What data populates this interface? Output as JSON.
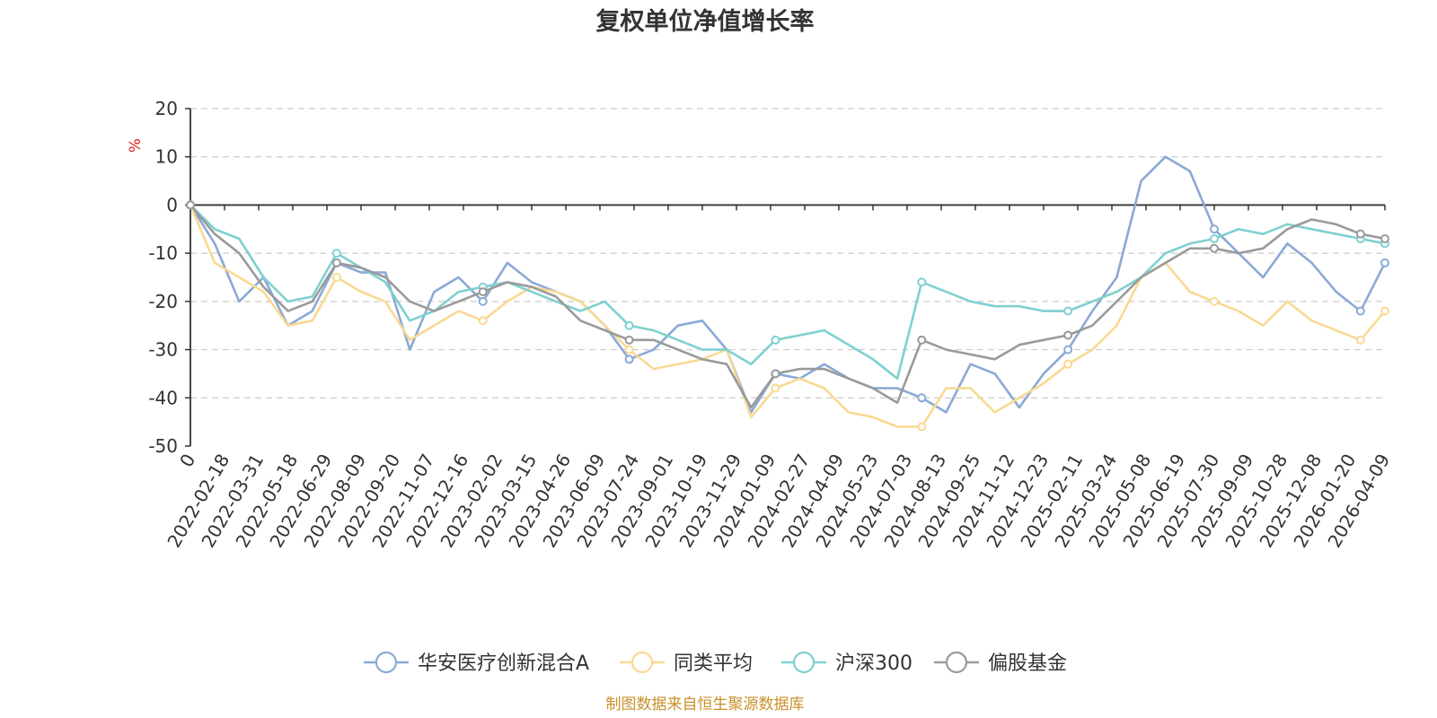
{
  "chart_data": {
    "type": "line",
    "title": "复权单位净值增长率",
    "ylabel": "%",
    "ylim": [
      -50,
      20
    ],
    "yticks": [
      20,
      10,
      0,
      -10,
      -20,
      -30,
      -40,
      -50
    ],
    "grid": true,
    "legend_position": "bottom-center",
    "x_tick_labels": [
      "0",
      "2022-02-18",
      "2022-03-31",
      "2022-05-18",
      "2022-06-29",
      "2022-08-09",
      "2022-09-20",
      "2022-11-07",
      "2022-12-16",
      "2023-02-02",
      "2023-03-15",
      "2023-04-26",
      "2023-06-09",
      "2023-07-24",
      "2023-09-01",
      "2023-10-19",
      "2023-11-29",
      "2024-01-09",
      "2024-02-27",
      "2024-04-09",
      "2024-05-23",
      "2024-07-03",
      "2024-08-13",
      "2024-09-25",
      "2024-11-12",
      "2024-12-23",
      "2025-02-11",
      "2025-03-24",
      "2025-05-08",
      "2025-06-19",
      "2025-07-30",
      "2025-09-09",
      "2025-10-28",
      "2025-12-08",
      "2026-01-20",
      "2026-04-09"
    ],
    "series": [
      {
        "name": "华安医疗创新混合A",
        "color": "#8aa9d6",
        "values": [
          0,
          -8,
          -20,
          -15,
          -25,
          -22,
          -12,
          -14,
          -14,
          -30,
          -18,
          -15,
          -20,
          -12,
          -16,
          -18,
          -20,
          -25,
          -32,
          -30,
          -25,
          -24,
          -30,
          -43,
          -35,
          -36,
          -33,
          -36,
          -38,
          -38,
          -40,
          -43,
          -33,
          -35,
          -42,
          -35,
          -30,
          -22,
          -15,
          5,
          10,
          7,
          -5,
          -10,
          -15,
          -8,
          -12,
          -18,
          -22,
          -12
        ]
      },
      {
        "name": "同类平均",
        "color": "#f9d992",
        "values": [
          0,
          -12,
          -15,
          -18,
          -25,
          -24,
          -15,
          -18,
          -20,
          -28,
          -25,
          -22,
          -24,
          -20,
          -17,
          -18,
          -20,
          -25,
          -30,
          -34,
          -33,
          -32,
          -30,
          -44,
          -38,
          -36,
          -38,
          -43,
          -44,
          -46,
          -46,
          -38,
          -38,
          -43,
          -40,
          -37,
          -33,
          -30,
          -25,
          -15,
          -12,
          -18,
          -20,
          -22,
          -25,
          -20,
          -24,
          -26,
          -28,
          -22
        ]
      },
      {
        "name": "沪深300",
        "color": "#7fd0d0",
        "values": [
          0,
          -5,
          -7,
          -15,
          -20,
          -19,
          -10,
          -13,
          -16,
          -24,
          -22,
          -18,
          -17,
          -16,
          -18,
          -20,
          -22,
          -20,
          -25,
          -26,
          -28,
          -30,
          -30,
          -33,
          -28,
          -27,
          -26,
          -29,
          -32,
          -36,
          -16,
          -18,
          -20,
          -21,
          -21,
          -22,
          -22,
          -20,
          -18,
          -15,
          -10,
          -8,
          -7,
          -5,
          -6,
          -4,
          -5,
          -6,
          -7,
          -8
        ]
      },
      {
        "name": "偏股基金",
        "color": "#9a9a9a",
        "values": [
          0,
          -6,
          -10,
          -17,
          -22,
          -20,
          -12,
          -13,
          -15,
          -20,
          -22,
          -20,
          -18,
          -16,
          -17,
          -19,
          -24,
          -26,
          -28,
          -28,
          -30,
          -32,
          -33,
          -42,
          -35,
          -34,
          -34,
          -36,
          -38,
          -41,
          -28,
          -30,
          -31,
          -32,
          -29,
          -28,
          -27,
          -25,
          -20,
          -15,
          -12,
          -9,
          -9,
          -10,
          -9,
          -5,
          -3,
          -4,
          -6,
          -7
        ]
      }
    ]
  },
  "footer": {
    "source": "制图数据来自恒生聚源数据库"
  },
  "colors": {
    "title": "#333333",
    "axis": "#333333",
    "grid": "#cccccc",
    "unit": "#e02020",
    "source": "#c8902a"
  }
}
